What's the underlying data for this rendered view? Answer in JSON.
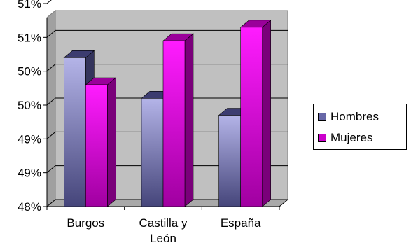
{
  "chart_data": {
    "type": "bar",
    "categories": [
      "Burgos",
      "Castilla y León",
      "España"
    ],
    "series": [
      {
        "name": "Hombres",
        "values": [
          50.2,
          49.6,
          49.35
        ],
        "color": "#6868a8"
      },
      {
        "name": "Mujeres",
        "values": [
          49.8,
          50.45,
          50.65
        ],
        "color": "#cc00cc"
      }
    ],
    "y_tick_labels": [
      "48%",
      "49%",
      "49%",
      "50%",
      "50%",
      "51%",
      "51%"
    ],
    "ylim": [
      48,
      51
    ],
    "grid": true,
    "legend_position": "right",
    "style": "3d-clustered-column"
  }
}
